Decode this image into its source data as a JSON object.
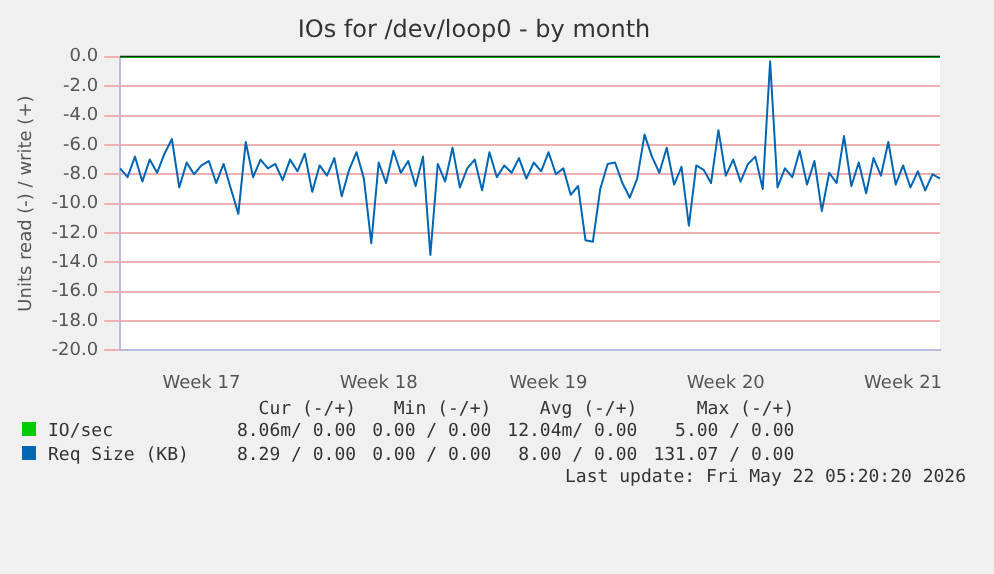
{
  "chart_data": {
    "type": "line",
    "title": "IOs for /dev/loop0 - by month",
    "ylabel": "Units read (-) / write (+)",
    "categories": [
      null,
      null,
      null,
      null,
      null,
      null,
      null,
      null,
      null,
      null,
      null,
      "Week 17",
      null,
      null,
      null,
      null,
      null,
      null,
      null,
      null,
      null,
      null,
      null,
      null,
      null,
      null,
      null,
      null,
      null,
      null,
      null,
      null,
      null,
      null,
      null,
      "Week 18",
      null,
      null,
      null,
      null,
      null,
      null,
      null,
      null,
      null,
      null,
      null,
      null,
      null,
      null,
      null,
      null,
      null,
      null,
      null,
      null,
      null,
      null,
      "Week 19",
      null,
      null,
      null,
      null,
      null,
      null,
      null,
      null,
      null,
      null,
      null,
      null,
      null,
      null,
      null,
      null,
      null,
      null,
      null,
      null,
      null,
      null,
      null,
      "Week 20",
      null,
      null,
      null,
      null,
      null,
      null,
      null,
      null,
      null,
      null,
      null,
      null,
      null,
      null,
      null,
      null,
      null,
      null,
      null,
      null,
      null,
      null,
      null,
      "Week 21",
      null,
      null,
      null,
      null,
      null
    ],
    "ylim": [
      -20,
      0
    ],
    "yticks": [
      {
        "value": -20,
        "label": "-20.0"
      },
      {
        "value": -18,
        "label": "-18.0"
      },
      {
        "value": -16,
        "label": "-16.0"
      },
      {
        "value": -14,
        "label": "-14.0"
      },
      {
        "value": -12,
        "label": "-12.0"
      },
      {
        "value": -10,
        "label": "-10.0"
      },
      {
        "value": -8,
        "label": "-8.0"
      },
      {
        "value": -6,
        "label": "-6.0"
      },
      {
        "value": -4,
        "label": "-4.0"
      },
      {
        "value": -2,
        "label": "-2.0"
      },
      {
        "value": 0,
        "label": "0.0"
      }
    ],
    "grid": "y",
    "legend": "bottom",
    "marker": "none",
    "line_style": "solid",
    "ref_lines": [
      {
        "axis": "y",
        "value": 0,
        "color": "#000000"
      }
    ],
    "series": [
      {
        "name": "IO/sec",
        "color": "#00cc00",
        "values": [
          0,
          0,
          0,
          0,
          0,
          0,
          0,
          0,
          0,
          0,
          0,
          0,
          0,
          0,
          0,
          0,
          0,
          0,
          0,
          0,
          0,
          0,
          0,
          0,
          0,
          0,
          0,
          0,
          0,
          0,
          0,
          0,
          0,
          0,
          0,
          0,
          0,
          0,
          0,
          0,
          0,
          0,
          0,
          0,
          0,
          0,
          0,
          0,
          0,
          0,
          0,
          0,
          0,
          0,
          0,
          0,
          0,
          0,
          0,
          0,
          0,
          0,
          0,
          0,
          0,
          0,
          0,
          0,
          0,
          0,
          0,
          0,
          0,
          0,
          0,
          0,
          0,
          0,
          0,
          0,
          0,
          0,
          0,
          0,
          0,
          0,
          0,
          0,
          0,
          0,
          0,
          0,
          0,
          0,
          0,
          0,
          0,
          0,
          0,
          0,
          0,
          0,
          0,
          0,
          0,
          0,
          0,
          0,
          0,
          0,
          0,
          0
        ]
      },
      {
        "name": "Req Size (KB)",
        "color": "#0066b3",
        "values": [
          -7.6,
          -8.2,
          -6.8,
          -8.5,
          -7.0,
          -7.9,
          -6.6,
          -5.6,
          -8.9,
          -7.2,
          -8.0,
          -7.4,
          -7.1,
          -8.6,
          -7.3,
          -9.0,
          -10.7,
          -5.8,
          -8.2,
          -7.0,
          -7.6,
          -7.3,
          -8.4,
          -7.0,
          -7.8,
          -6.6,
          -9.2,
          -7.4,
          -8.1,
          -6.9,
          -9.5,
          -7.7,
          -6.5,
          -8.3,
          -12.7,
          -7.2,
          -8.6,
          -6.4,
          -7.9,
          -7.1,
          -8.8,
          -6.8,
          -13.5,
          -7.3,
          -8.5,
          -6.2,
          -8.9,
          -7.6,
          -7.0,
          -9.1,
          -6.5,
          -8.2,
          -7.4,
          -7.9,
          -6.9,
          -8.3,
          -7.2,
          -7.8,
          -6.5,
          -8.0,
          -7.6,
          -9.4,
          -8.8,
          -12.5,
          -12.6,
          -9.0,
          -7.3,
          -7.2,
          -8.6,
          -9.6,
          -8.3,
          -5.3,
          -6.8,
          -7.9,
          -6.2,
          -8.7,
          -7.5,
          -11.5,
          -7.4,
          -7.7,
          -8.6,
          -5.0,
          -8.1,
          -7.0,
          -8.5,
          -7.3,
          -6.8,
          -9.0,
          -0.3,
          -8.9,
          -7.6,
          -8.2,
          -6.4,
          -8.7,
          -7.1,
          -10.5,
          -7.9,
          -8.6,
          -5.4,
          -8.8,
          -7.2,
          -9.3,
          -6.9,
          -8.1,
          -5.8,
          -8.7,
          -7.4,
          -8.9,
          -7.8,
          -9.1,
          -8.0,
          -8.3
        ]
      }
    ],
    "annotations": [
      "Cur (-/+)",
      "Min (-/+)",
      "Avg (-/+)",
      "Max (-/+)",
      "8.06m/ 0.00",
      "0.00 / 0.00",
      "12.04m/ 0.00",
      "5.00 / 0.00",
      "8.29 / 0.00",
      "0.00 / 0.00",
      "8.00 / 0.00",
      "131.07 / 0.00",
      "Last update: Fri May 22 05:20:20 2026"
    ]
  }
}
